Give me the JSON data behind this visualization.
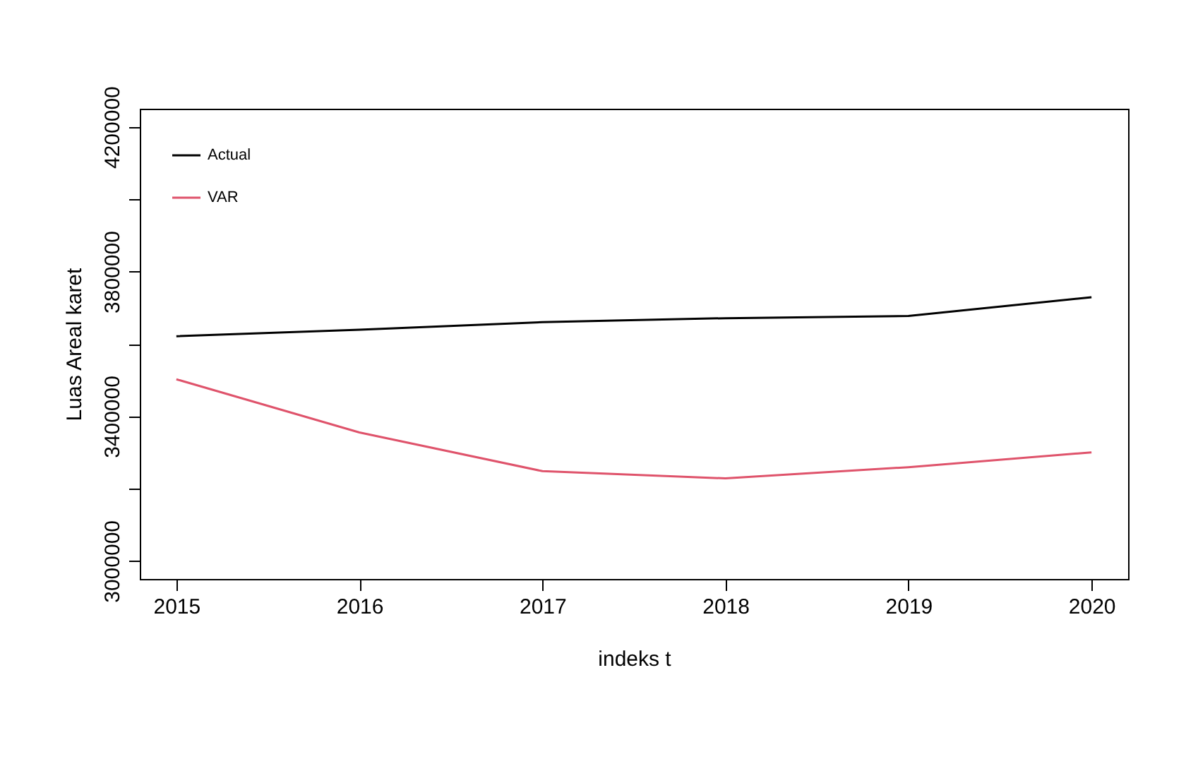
{
  "chart_data": {
    "type": "line",
    "xlabel": "indeks t",
    "ylabel": "Luas Areal karet",
    "x": [
      2015,
      2016,
      2017,
      2018,
      2019,
      2020
    ],
    "series": [
      {
        "name": "Actual",
        "color": "#000000",
        "values": [
          3621000,
          3639000,
          3660000,
          3671000,
          3677000,
          3729000
        ]
      },
      {
        "name": "VAR",
        "color": "#df536b",
        "values": [
          3502000,
          3355000,
          3248000,
          3228000,
          3259000,
          3300000
        ]
      }
    ],
    "xlim": [
      2014.8,
      2020.2
    ],
    "xticks": [
      2015,
      2016,
      2017,
      2018,
      2019,
      2020
    ],
    "ylim": [
      2950000,
      4250000
    ],
    "yticks": [
      3000000,
      {
        "value": 3200000,
        "label": null
      },
      3400000,
      {
        "value": 3600000,
        "label": null
      },
      3800000,
      {
        "value": 4000000,
        "label": null
      },
      4200000
    ],
    "grid": false,
    "legend": "top left",
    "marker": "none",
    "line_style": "solid"
  }
}
